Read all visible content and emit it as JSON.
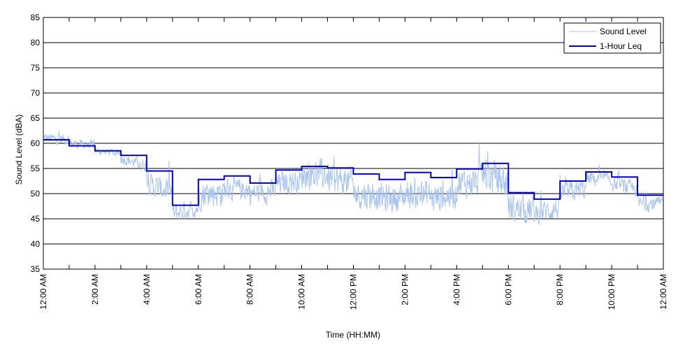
{
  "chart_data": {
    "type": "line",
    "title": "",
    "xlabel": "Time (HH:MM)",
    "ylabel": "Sound Level (dBA)",
    "ylim": [
      35,
      85
    ],
    "yticks": [
      35,
      40,
      45,
      50,
      55,
      60,
      65,
      70,
      75,
      80,
      85
    ],
    "xlim_hours": [
      0,
      24
    ],
    "x_tick_hours": [
      0,
      2,
      4,
      6,
      8,
      10,
      12,
      14,
      16,
      18,
      20,
      22,
      24
    ],
    "x_tick_labels": [
      "12:00 AM",
      "2:00 AM",
      "4:00 AM",
      "6:00 AM",
      "8:00 AM",
      "10:00 AM",
      "12:00 PM",
      "2:00 PM",
      "4:00 PM",
      "6:00 PM",
      "8:00 PM",
      "10:00 PM",
      "12:00 AM"
    ],
    "grid": "horizontal",
    "legend_position": "top-right",
    "series": [
      {
        "name": "Sound Level",
        "color": "#a8c4f0",
        "kind": "raw",
        "approx_hourly_mean": [
          61,
          60,
          58.5,
          57,
          52,
          46,
          50,
          51,
          50,
          52,
          54,
          53,
          50,
          49,
          50,
          49,
          52,
          54,
          47,
          46,
          50,
          53,
          52,
          48
        ],
        "approx_hourly_spread": [
          1.5,
          1.2,
          1,
          1.5,
          3,
          2.5,
          4,
          3,
          3,
          3,
          4,
          4,
          4,
          4,
          4,
          4,
          4,
          5,
          4,
          3,
          3,
          2,
          2,
          2
        ]
      },
      {
        "name": "1-Hour Leq",
        "color": "#0000cc",
        "kind": "step",
        "hourly_leq": [
          60.7,
          59.5,
          58.5,
          57.6,
          54.5,
          47.7,
          52.8,
          53.5,
          52.1,
          54.7,
          55.4,
          55.1,
          53.9,
          52.8,
          54.2,
          53.2,
          54.9,
          56,
          50.2,
          48.9,
          52.5,
          54.3,
          53.3,
          49.7
        ]
      }
    ]
  }
}
